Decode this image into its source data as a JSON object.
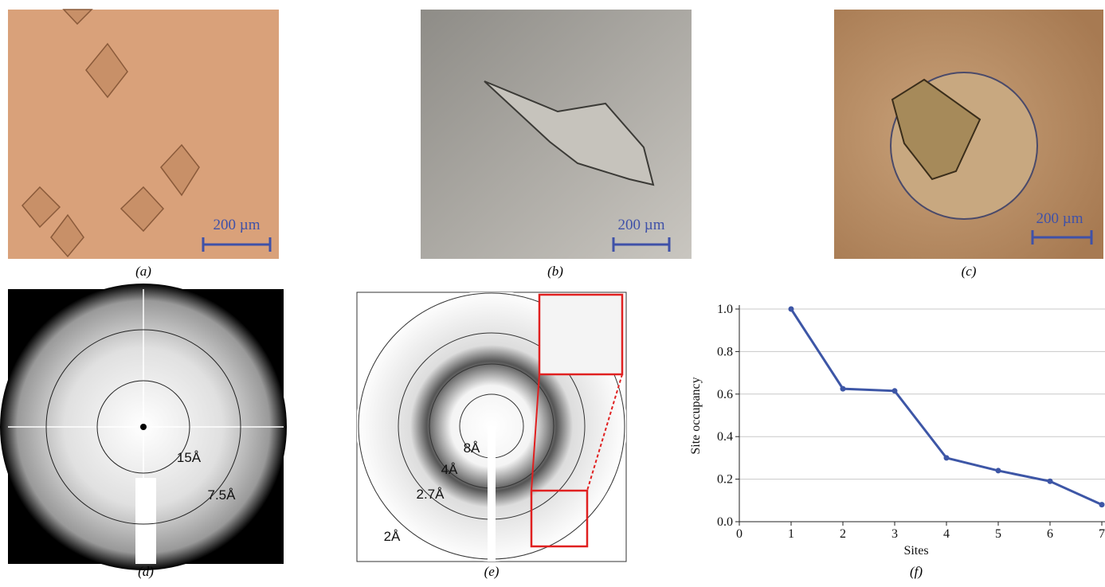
{
  "figure": {
    "panels": [
      {
        "label": "(a)",
        "scale_bar": "200 µm"
      },
      {
        "label": "(b)",
        "scale_bar": "200 µm"
      },
      {
        "label": "(c)",
        "scale_bar": "200 µm"
      },
      {
        "label": "(d)",
        "rings": [
          "15Å",
          "7.5Å"
        ]
      },
      {
        "label": "(e)",
        "rings": [
          "8Å",
          "4Å",
          "2.7Å",
          "2Å"
        ]
      },
      {
        "label": "(f)"
      }
    ]
  },
  "chart_data": {
    "type": "line",
    "x_label": "Sites",
    "y_label": "Site occupancy",
    "x": [
      1,
      2,
      3,
      4,
      5,
      6,
      7
    ],
    "series": [
      {
        "color": "#3d56a6",
        "values": [
          1.0,
          0.625,
          0.615,
          0.3,
          0.24,
          0.19,
          0.08
        ]
      }
    ],
    "xlim": [
      0,
      7
    ],
    "xticks": [
      0,
      1,
      2,
      3,
      4,
      5,
      6,
      7
    ],
    "ylim": [
      0,
      1.0
    ],
    "yticks": [
      {
        "value": 0,
        "label": "0.0"
      },
      {
        "value": 0.2,
        "label": "0.2"
      },
      {
        "value": 0.4,
        "label": "0.4"
      },
      {
        "value": 0.6,
        "label": "0.6"
      },
      {
        "value": 0.8,
        "label": "0.8"
      },
      {
        "value": 1.0,
        "label": "1.0"
      }
    ],
    "grid": true
  }
}
